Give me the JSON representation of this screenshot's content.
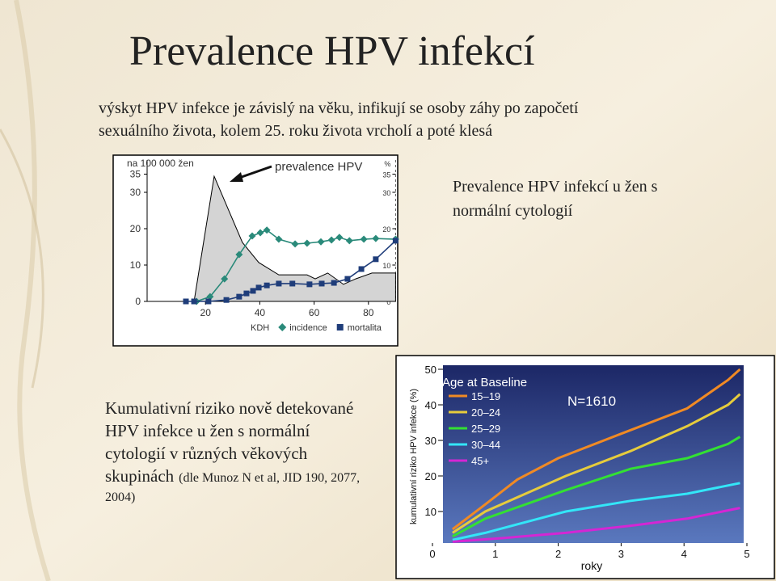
{
  "slide": {
    "title": "Prevalence HPV infekcí",
    "subtitle": [
      "výskyt HPV infekce je závislý na věku, infikují se osoby záhy po započetí",
      "sexuálního života, kolem 25. roku života vrcholí  a poté klesá"
    ],
    "note": [
      "Prevalence HPV infekcí u žen s",
      "normální cytologií"
    ],
    "caption": [
      "Kumulativní riziko nově detekované",
      "HPV infekce u žen s normální",
      "cytologií v různých věkových",
      "skupinách"
    ],
    "source": [
      "(dle Munoz N et al, JID 190, 2077,",
      "2004)"
    ]
  },
  "chart_data": [
    {
      "type": "line",
      "y_label": "na 100 000 žen",
      "y2_label": "%",
      "annotation": "prevalence HPV",
      "xlim": [
        0,
        90
      ],
      "ylim": [
        0,
        40
      ],
      "y2lim": [
        0,
        40
      ],
      "xticks": [
        20,
        40,
        60,
        80
      ],
      "yticks": [
        0,
        10,
        20,
        30,
        35
      ],
      "y2ticks": [
        0,
        10,
        20,
        30,
        35
      ],
      "series": [
        {
          "name": "KDH",
          "color": "#d4d4d4",
          "style": "area",
          "x": [
            15.8,
            23.2,
            33.6,
            39.6,
            47,
            57.4,
            60.4,
            65,
            70.8,
            75.3,
            81.3,
            90
          ],
          "values": [
            0,
            34.4,
            16.2,
            10.7,
            7.3,
            7.3,
            6.2,
            7.8,
            4.7,
            6.2,
            7.8,
            7.8
          ]
        },
        {
          "name": "incidence",
          "color": "#2a8a7a",
          "marker": "diamond",
          "axis": "y2",
          "x": [
            16.7,
            21.7,
            27,
            32.4,
            37.2,
            40.2,
            42.6,
            47,
            53,
            57.4,
            62.5,
            66.4,
            69.3,
            73,
            78.3,
            82.7,
            90
          ],
          "values": [
            0,
            1.3,
            6.2,
            12.9,
            18,
            18.9,
            19.6,
            17.1,
            15.8,
            16,
            16.4,
            16.9,
            17.6,
            16.7,
            17.1,
            17.3,
            17.1
          ]
        },
        {
          "name": "mortalita",
          "color": "#1f3d7a",
          "marker": "square",
          "axis": "y2",
          "x": [
            12.8,
            15.8,
            21.1,
            27.7,
            32.4,
            35.1,
            37.5,
            39.6,
            42.6,
            47,
            52,
            58.3,
            62.8,
            67.3,
            72.3,
            77.4,
            82.7,
            90
          ],
          "values": [
            0,
            0,
            0,
            0.4,
            1.3,
            2.2,
            2.9,
            3.8,
            4.4,
            4.9,
            4.9,
            4.7,
            4.9,
            5.1,
            6.2,
            8.9,
            11.6,
            16.7
          ]
        }
      ]
    },
    {
      "type": "line",
      "x_label": "roky",
      "y_label": "kumulativní riziko HPV infekce (%)",
      "legend_title": "Age at Baseline",
      "annotation": "N=1610",
      "xlim": [
        0,
        5
      ],
      "ylim": [
        0,
        50
      ],
      "xticks": [
        0,
        1,
        2,
        3,
        4,
        5
      ],
      "yticks": [
        10,
        20,
        30,
        40,
        50
      ],
      "series": [
        {
          "name": "15–19",
          "color": "#f08a24",
          "x": [
            0.32,
            0.84,
            1.35,
            2,
            3.02,
            4.05,
            4.7,
            4.89
          ],
          "values": [
            5,
            12,
            19,
            25,
            32,
            39,
            47,
            50
          ]
        },
        {
          "name": "20–24",
          "color": "#e6cc3c",
          "x": [
            0.32,
            0.84,
            1.48,
            2.12,
            3.15,
            4.05,
            4.7,
            4.89
          ],
          "values": [
            4,
            10,
            15,
            20,
            27,
            34,
            40,
            43
          ]
        },
        {
          "name": "25–29",
          "color": "#33e033",
          "x": [
            0.32,
            0.84,
            1.48,
            2.12,
            3.15,
            4.05,
            4.7,
            4.89
          ],
          "values": [
            3,
            8,
            12,
            16,
            22,
            25,
            29,
            31
          ]
        },
        {
          "name": "30–44",
          "color": "#33e6f8",
          "x": [
            0.32,
            0.84,
            1.48,
            2.12,
            3.15,
            4.05,
            4.89
          ],
          "values": [
            2,
            4,
            7,
            10,
            13,
            15,
            18
          ]
        },
        {
          "name": "45+",
          "color": "#d426d4",
          "x": [
            0.32,
            1.1,
            2.12,
            3.15,
            4.05,
            4.89
          ],
          "values": [
            1.5,
            2.5,
            4,
            6,
            8,
            11
          ]
        }
      ]
    }
  ]
}
